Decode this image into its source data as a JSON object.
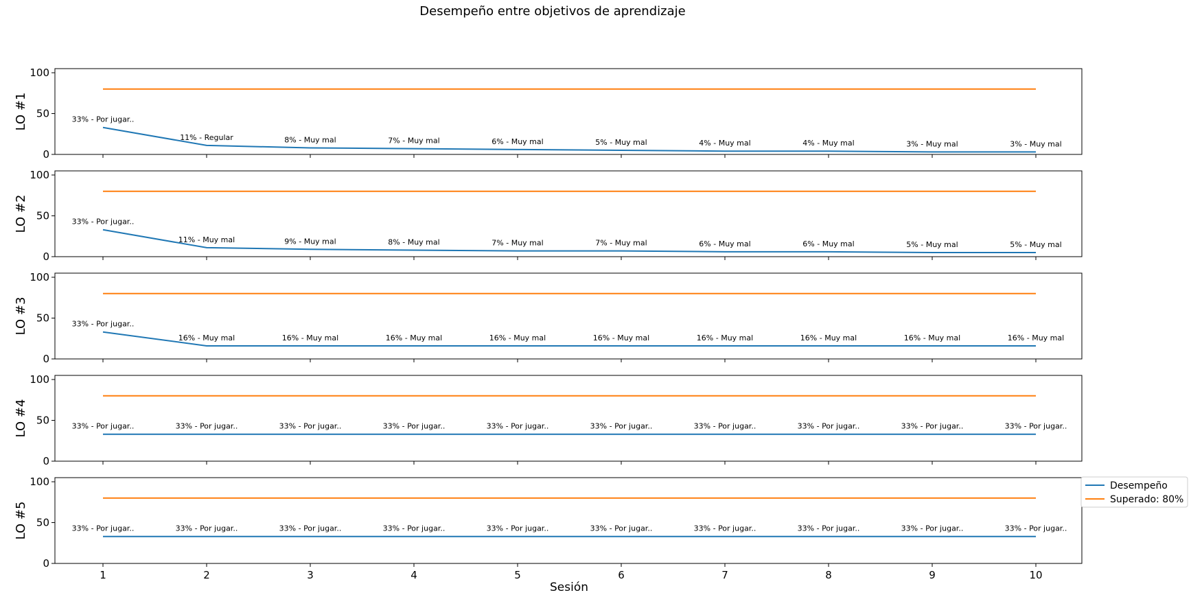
{
  "chart_data": {
    "type": "line",
    "title": "Desempeño entre objetivos de aprendizaje",
    "xlabel": "Sesión",
    "x": [
      1,
      2,
      3,
      4,
      5,
      6,
      7,
      8,
      9,
      10
    ],
    "ylim": [
      0,
      100
    ],
    "yticks": [
      0,
      50,
      100
    ],
    "grid": false,
    "legend": {
      "placement": "right, beside last subplot",
      "entries": [
        "Desempeño",
        "Superado: 80%"
      ]
    },
    "colors": {
      "performance": "#1f77b4",
      "threshold": "#ff7f0e"
    },
    "threshold": 80,
    "subplots": [
      {
        "ylabel": "LO #1",
        "series": [
          {
            "name": "Desempeño",
            "values": [
              33,
              11,
              8,
              7,
              6,
              5,
              4,
              4,
              3,
              3
            ]
          },
          {
            "name": "Superado: 80%",
            "values": [
              80,
              80,
              80,
              80,
              80,
              80,
              80,
              80,
              80,
              80
            ]
          }
        ],
        "annotations": [
          "33% - Por jugar..",
          "11% - Regular",
          "8% - Muy mal",
          "7% - Muy mal",
          "6% - Muy mal",
          "5% - Muy mal",
          "4% - Muy mal",
          "4% - Muy mal",
          "3% - Muy mal",
          "3% - Muy mal"
        ]
      },
      {
        "ylabel": "LO #2",
        "series": [
          {
            "name": "Desempeño",
            "values": [
              33,
              11,
              9,
              8,
              7,
              7,
              6,
              6,
              5,
              5
            ]
          },
          {
            "name": "Superado: 80%",
            "values": [
              80,
              80,
              80,
              80,
              80,
              80,
              80,
              80,
              80,
              80
            ]
          }
        ],
        "annotations": [
          "33% - Por jugar..",
          "11% - Muy mal",
          "9% - Muy mal",
          "8% - Muy mal",
          "7% - Muy mal",
          "7% - Muy mal",
          "6% - Muy mal",
          "6% - Muy mal",
          "5% - Muy mal",
          "5% - Muy mal"
        ]
      },
      {
        "ylabel": "LO #3",
        "series": [
          {
            "name": "Desempeño",
            "values": [
              33,
              16,
              16,
              16,
              16,
              16,
              16,
              16,
              16,
              16
            ]
          },
          {
            "name": "Superado: 80%",
            "values": [
              80,
              80,
              80,
              80,
              80,
              80,
              80,
              80,
              80,
              80
            ]
          }
        ],
        "annotations": [
          "33% - Por jugar..",
          "16% - Muy mal",
          "16% - Muy mal",
          "16% - Muy mal",
          "16% - Muy mal",
          "16% - Muy mal",
          "16% - Muy mal",
          "16% - Muy mal",
          "16% - Muy mal",
          "16% - Muy mal"
        ]
      },
      {
        "ylabel": "LO #4",
        "series": [
          {
            "name": "Desempeño",
            "values": [
              33,
              33,
              33,
              33,
              33,
              33,
              33,
              33,
              33,
              33
            ]
          },
          {
            "name": "Superado: 80%",
            "values": [
              80,
              80,
              80,
              80,
              80,
              80,
              80,
              80,
              80,
              80
            ]
          }
        ],
        "annotations": [
          "33% - Por jugar..",
          "33% - Por jugar..",
          "33% - Por jugar..",
          "33% - Por jugar..",
          "33% - Por jugar..",
          "33% - Por jugar..",
          "33% - Por jugar..",
          "33% - Por jugar..",
          "33% - Por jugar..",
          "33% - Por jugar.."
        ]
      },
      {
        "ylabel": "LO #5",
        "series": [
          {
            "name": "Desempeño",
            "values": [
              33,
              33,
              33,
              33,
              33,
              33,
              33,
              33,
              33,
              33
            ]
          },
          {
            "name": "Superado: 80%",
            "values": [
              80,
              80,
              80,
              80,
              80,
              80,
              80,
              80,
              80,
              80
            ]
          }
        ],
        "annotations": [
          "33% - Por jugar..",
          "33% - Por jugar..",
          "33% - Por jugar..",
          "33% - Por jugar..",
          "33% - Por jugar..",
          "33% - Por jugar..",
          "33% - Por jugar..",
          "33% - Por jugar..",
          "33% - Por jugar..",
          "33% - Por jugar.."
        ]
      }
    ]
  }
}
